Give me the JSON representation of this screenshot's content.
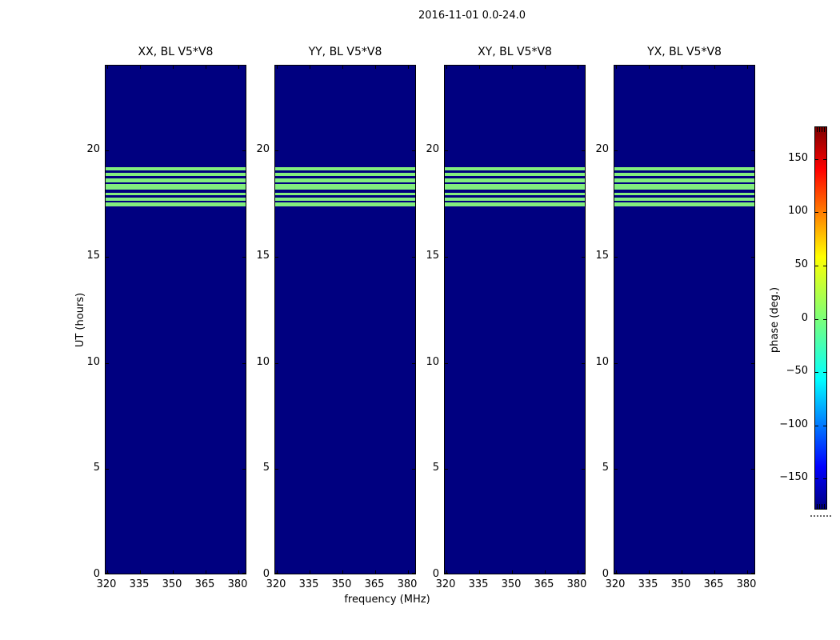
{
  "figure": {
    "title": "2016-11-01 0.0-24.0",
    "xlabel": "frequency (MHz)",
    "ylabel": "UT (hours)",
    "colorbar_label": "phase (deg.)"
  },
  "colors": {
    "background": "#ffffff",
    "low_phase_navy": "#000080",
    "band_green": "#82ee7e",
    "frame": "#000000"
  },
  "chart_data": {
    "type": "heatmap",
    "title": "2016-11-01 0.0-24.0",
    "xlabel": "frequency (MHz)",
    "ylabel": "UT (hours)",
    "colormap": "jet",
    "subplots": [
      {
        "title": "XX, BL V5*V8"
      },
      {
        "title": "YY, BL V5*V8"
      },
      {
        "title": "XY, BL V5*V8"
      },
      {
        "title": "YX, BL V5*V8"
      }
    ],
    "x": {
      "ticks": [
        320,
        335,
        350,
        365,
        380
      ],
      "lim": [
        319.3,
        384
      ]
    },
    "y": {
      "ticks": [
        0,
        5,
        10,
        15,
        20
      ],
      "lim": [
        0,
        24
      ]
    },
    "background_phase_deg": -180,
    "band": {
      "description": "Horizontal band of phase ~0 deg (green) with thin navy separator rows, identical in all four subplots, spanning all frequencies",
      "ut_start": 17.36,
      "ut_end": 19.21,
      "phase_deg": 0,
      "stripes": [
        {
          "color": "#82ee7e",
          "h": 4
        },
        {
          "color": "#000080",
          "h": 3
        },
        {
          "color": "#82ee7e",
          "h": 4
        },
        {
          "color": "#000080",
          "h": 3
        },
        {
          "color": "#82ee7e",
          "h": 5
        },
        {
          "color": "#000080",
          "h": 2
        },
        {
          "color": "#82ee7e",
          "h": 7
        },
        {
          "color": "#000080",
          "h": 4
        },
        {
          "color": "#82ee7e",
          "h": 3
        },
        {
          "color": "#000080",
          "h": 3
        },
        {
          "color": "#82ee7e",
          "h": 4
        },
        {
          "color": "#000080",
          "h": 2
        },
        {
          "color": "#82ee7e",
          "h": 5
        }
      ]
    },
    "colorbar": {
      "label": "phase (deg.)",
      "range": [
        -180,
        180
      ],
      "tick_values": [
        150,
        100,
        50,
        0,
        -50,
        -100,
        -150
      ],
      "tick_labels": [
        "150",
        "100",
        "50",
        "0",
        "−50",
        "−100",
        "−150"
      ],
      "gradient_top_down": [
        {
          "pos": 0,
          "color": "#7f0000"
        },
        {
          "pos": 11,
          "color": "#ff0000"
        },
        {
          "pos": 34,
          "color": "#ffff00"
        },
        {
          "pos": 50,
          "color": "#7dff77"
        },
        {
          "pos": 66,
          "color": "#00ffff"
        },
        {
          "pos": 89,
          "color": "#0000ff"
        },
        {
          "pos": 100,
          "color": "#000080"
        }
      ]
    }
  }
}
